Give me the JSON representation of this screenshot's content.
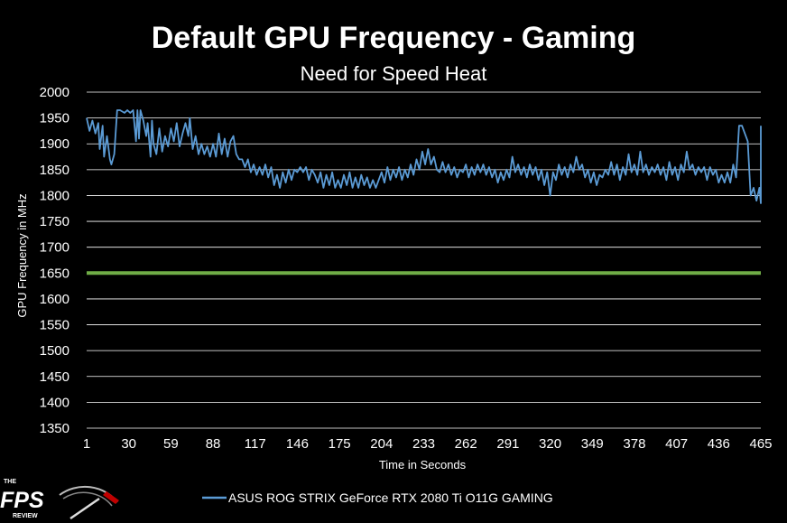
{
  "chart_data": {
    "type": "line",
    "title": "Default GPU Frequency - Gaming",
    "subtitle": "Need for Speed Heat",
    "xlabel": "Time in Seconds",
    "ylabel": "GPU Frequency in MHz",
    "ylim": [
      1350,
      2000
    ],
    "yticks": [
      "2000",
      "1950",
      "1900",
      "1850",
      "1800",
      "1750",
      "1700",
      "1650",
      "1600",
      "1550",
      "1500",
      "1450",
      "1400",
      "1350"
    ],
    "xticks": [
      "1",
      "30",
      "59",
      "88",
      "117",
      "146",
      "175",
      "204",
      "233",
      "262",
      "291",
      "320",
      "349",
      "378",
      "407",
      "436",
      "465"
    ],
    "xlim": [
      1,
      465
    ],
    "grid": true,
    "reference_line": {
      "value": 1650,
      "color": "#70AD47"
    },
    "series": [
      {
        "name": "ASUS ROG STRIX GeForce RTX 2080 Ti O11G GAMING",
        "color": "#5B9BD5",
        "points": [
          [
            1,
            1950
          ],
          [
            3,
            1925
          ],
          [
            5,
            1945
          ],
          [
            7,
            1920
          ],
          [
            9,
            1940
          ],
          [
            10,
            1890
          ],
          [
            12,
            1935
          ],
          [
            13,
            1875
          ],
          [
            15,
            1915
          ],
          [
            17,
            1870
          ],
          [
            18,
            1860
          ],
          [
            20,
            1880
          ],
          [
            22,
            1965
          ],
          [
            24,
            1965
          ],
          [
            27,
            1960
          ],
          [
            29,
            1965
          ],
          [
            31,
            1960
          ],
          [
            33,
            1965
          ],
          [
            35,
            1905
          ],
          [
            36,
            1965
          ],
          [
            37,
            1910
          ],
          [
            38,
            1965
          ],
          [
            40,
            1945
          ],
          [
            42,
            1915
          ],
          [
            43,
            1940
          ],
          [
            45,
            1875
          ],
          [
            46,
            1945
          ],
          [
            47,
            1900
          ],
          [
            49,
            1880
          ],
          [
            51,
            1930
          ],
          [
            53,
            1885
          ],
          [
            55,
            1915
          ],
          [
            57,
            1895
          ],
          [
            59,
            1930
          ],
          [
            61,
            1905
          ],
          [
            63,
            1940
          ],
          [
            65,
            1895
          ],
          [
            67,
            1920
          ],
          [
            69,
            1940
          ],
          [
            71,
            1915
          ],
          [
            72,
            1950
          ],
          [
            74,
            1890
          ],
          [
            76,
            1915
          ],
          [
            78,
            1880
          ],
          [
            80,
            1900
          ],
          [
            82,
            1880
          ],
          [
            84,
            1895
          ],
          [
            86,
            1875
          ],
          [
            88,
            1900
          ],
          [
            90,
            1875
          ],
          [
            92,
            1920
          ],
          [
            94,
            1880
          ],
          [
            96,
            1910
          ],
          [
            98,
            1875
          ],
          [
            100,
            1905
          ],
          [
            102,
            1915
          ],
          [
            104,
            1880
          ],
          [
            106,
            1870
          ],
          [
            108,
            1870
          ],
          [
            110,
            1855
          ],
          [
            112,
            1870
          ],
          [
            114,
            1845
          ],
          [
            116,
            1860
          ],
          [
            118,
            1840
          ],
          [
            120,
            1855
          ],
          [
            122,
            1840
          ],
          [
            124,
            1860
          ],
          [
            126,
            1835
          ],
          [
            128,
            1855
          ],
          [
            130,
            1820
          ],
          [
            132,
            1840
          ],
          [
            134,
            1815
          ],
          [
            136,
            1845
          ],
          [
            138,
            1825
          ],
          [
            140,
            1850
          ],
          [
            142,
            1830
          ],
          [
            144,
            1850
          ],
          [
            146,
            1845
          ],
          [
            148,
            1855
          ],
          [
            150,
            1845
          ],
          [
            152,
            1855
          ],
          [
            154,
            1830
          ],
          [
            156,
            1850
          ],
          [
            158,
            1840
          ],
          [
            160,
            1825
          ],
          [
            162,
            1845
          ],
          [
            164,
            1815
          ],
          [
            166,
            1840
          ],
          [
            168,
            1820
          ],
          [
            170,
            1845
          ],
          [
            172,
            1815
          ],
          [
            174,
            1830
          ],
          [
            176,
            1815
          ],
          [
            178,
            1840
          ],
          [
            180,
            1820
          ],
          [
            182,
            1845
          ],
          [
            184,
            1815
          ],
          [
            186,
            1835
          ],
          [
            188,
            1815
          ],
          [
            190,
            1840
          ],
          [
            192,
            1820
          ],
          [
            194,
            1835
          ],
          [
            196,
            1815
          ],
          [
            198,
            1830
          ],
          [
            200,
            1815
          ],
          [
            202,
            1830
          ],
          [
            204,
            1845
          ],
          [
            206,
            1825
          ],
          [
            208,
            1855
          ],
          [
            210,
            1830
          ],
          [
            212,
            1850
          ],
          [
            214,
            1835
          ],
          [
            216,
            1855
          ],
          [
            218,
            1830
          ],
          [
            220,
            1850
          ],
          [
            222,
            1835
          ],
          [
            224,
            1860
          ],
          [
            226,
            1840
          ],
          [
            228,
            1870
          ],
          [
            230,
            1850
          ],
          [
            232,
            1885
          ],
          [
            234,
            1860
          ],
          [
            236,
            1890
          ],
          [
            238,
            1860
          ],
          [
            240,
            1875
          ],
          [
            242,
            1850
          ],
          [
            244,
            1845
          ],
          [
            246,
            1865
          ],
          [
            248,
            1845
          ],
          [
            250,
            1860
          ],
          [
            252,
            1840
          ],
          [
            254,
            1855
          ],
          [
            256,
            1835
          ],
          [
            258,
            1850
          ],
          [
            260,
            1845
          ],
          [
            262,
            1860
          ],
          [
            264,
            1835
          ],
          [
            266,
            1855
          ],
          [
            268,
            1840
          ],
          [
            270,
            1860
          ],
          [
            272,
            1845
          ],
          [
            274,
            1860
          ],
          [
            276,
            1840
          ],
          [
            278,
            1855
          ],
          [
            280,
            1835
          ],
          [
            282,
            1850
          ],
          [
            284,
            1825
          ],
          [
            286,
            1845
          ],
          [
            288,
            1830
          ],
          [
            290,
            1850
          ],
          [
            292,
            1835
          ],
          [
            294,
            1875
          ],
          [
            296,
            1845
          ],
          [
            298,
            1860
          ],
          [
            300,
            1840
          ],
          [
            302,
            1855
          ],
          [
            304,
            1835
          ],
          [
            306,
            1860
          ],
          [
            308,
            1840
          ],
          [
            310,
            1855
          ],
          [
            312,
            1830
          ],
          [
            314,
            1850
          ],
          [
            316,
            1820
          ],
          [
            318,
            1845
          ],
          [
            320,
            1800
          ],
          [
            322,
            1845
          ],
          [
            324,
            1830
          ],
          [
            326,
            1860
          ],
          [
            328,
            1840
          ],
          [
            330,
            1855
          ],
          [
            332,
            1835
          ],
          [
            334,
            1860
          ],
          [
            336,
            1845
          ],
          [
            338,
            1875
          ],
          [
            340,
            1850
          ],
          [
            342,
            1860
          ],
          [
            344,
            1835
          ],
          [
            346,
            1850
          ],
          [
            348,
            1825
          ],
          [
            350,
            1845
          ],
          [
            352,
            1820
          ],
          [
            354,
            1840
          ],
          [
            356,
            1835
          ],
          [
            358,
            1850
          ],
          [
            360,
            1840
          ],
          [
            362,
            1865
          ],
          [
            364,
            1840
          ],
          [
            366,
            1860
          ],
          [
            368,
            1830
          ],
          [
            370,
            1855
          ],
          [
            372,
            1840
          ],
          [
            374,
            1880
          ],
          [
            376,
            1845
          ],
          [
            378,
            1860
          ],
          [
            380,
            1840
          ],
          [
            382,
            1885
          ],
          [
            384,
            1845
          ],
          [
            386,
            1860
          ],
          [
            388,
            1840
          ],
          [
            390,
            1855
          ],
          [
            392,
            1845
          ],
          [
            394,
            1860
          ],
          [
            396,
            1840
          ],
          [
            398,
            1855
          ],
          [
            400,
            1830
          ],
          [
            402,
            1865
          ],
          [
            404,
            1840
          ],
          [
            406,
            1855
          ],
          [
            408,
            1830
          ],
          [
            410,
            1860
          ],
          [
            412,
            1845
          ],
          [
            414,
            1885
          ],
          [
            416,
            1850
          ],
          [
            418,
            1860
          ],
          [
            420,
            1840
          ],
          [
            422,
            1855
          ],
          [
            424,
            1845
          ],
          [
            426,
            1855
          ],
          [
            428,
            1830
          ],
          [
            430,
            1855
          ],
          [
            432,
            1840
          ],
          [
            434,
            1850
          ],
          [
            436,
            1825
          ],
          [
            438,
            1840
          ],
          [
            440,
            1825
          ],
          [
            442,
            1845
          ],
          [
            444,
            1825
          ],
          [
            446,
            1860
          ],
          [
            448,
            1835
          ],
          [
            450,
            1935
          ],
          [
            452,
            1935
          ],
          [
            454,
            1920
          ],
          [
            456,
            1905
          ],
          [
            458,
            1800
          ],
          [
            460,
            1815
          ],
          [
            462,
            1790
          ],
          [
            464,
            1815
          ],
          [
            466,
            1785
          ],
          [
            468,
            1820
          ],
          [
            470,
            1935
          ]
        ]
      }
    ],
    "legend": {
      "position": "bottom",
      "label": "ASUS ROG STRIX GeForce RTX 2080 Ti O11G GAMING"
    }
  },
  "logo": {
    "top": "THE",
    "main": "FPS",
    "bottom": "REVIEW"
  }
}
